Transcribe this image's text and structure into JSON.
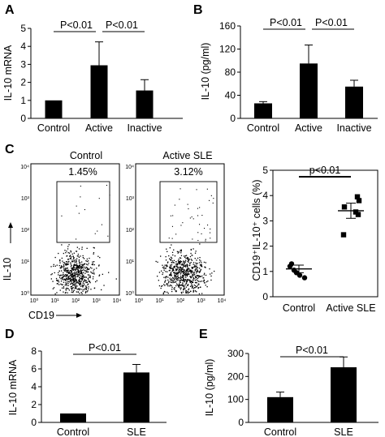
{
  "figure": {
    "panel_labels": [
      "A",
      "B",
      "C",
      "D",
      "E"
    ],
    "facs": {
      "panels": [
        {
          "title": "Control",
          "gate_percent": "1.45%"
        },
        {
          "title": "Active SLE",
          "gate_percent": "3.12%"
        }
      ],
      "y_axis_label": "IL-10",
      "x_axis_label": "CD19",
      "y_ticks": [
        "10⁰",
        "10¹",
        "10²",
        "10³",
        "10⁴"
      ],
      "x_ticks": [
        "10⁰",
        "10¹",
        "10²",
        "10³",
        "10⁴"
      ]
    }
  },
  "chart_data": [
    {
      "panel": "A",
      "type": "bar",
      "categories": [
        "Control",
        "Active",
        "Inactive"
      ],
      "values": [
        1.0,
        2.95,
        1.55
      ],
      "errors": [
        0,
        1.3,
        0.6
      ],
      "ylabel": "IL-10 mRNA",
      "ylim": [
        0,
        5
      ],
      "yticks": [
        0,
        1,
        2,
        3,
        4,
        5
      ],
      "significance": [
        {
          "from": 0,
          "to": 1,
          "label": "P<0.01"
        },
        {
          "from": 1,
          "to": 2,
          "label": "P<0.01"
        }
      ],
      "bar_color": "#000000"
    },
    {
      "panel": "B",
      "type": "bar",
      "categories": [
        "Control",
        "Active",
        "Inactive"
      ],
      "values": [
        26,
        95,
        55
      ],
      "errors": [
        3,
        32,
        11
      ],
      "ylabel": "IL-10 (pg/ml)",
      "ylim": [
        0,
        160
      ],
      "yticks": [
        0,
        40,
        80,
        120,
        160
      ],
      "significance": [
        {
          "from": 0,
          "to": 1,
          "label": "P<0.01"
        },
        {
          "from": 1,
          "to": 2,
          "label": "P<0.01"
        }
      ],
      "bar_color": "#000000"
    },
    {
      "panel": "C",
      "type": "scatter",
      "categories": [
        "Control",
        "Active SLE"
      ],
      "series": [
        {
          "values": [
            0.95,
            1.3,
            0.75,
            1.05,
            1.2,
            0.85
          ]
        },
        {
          "values": [
            3.95,
            3.8,
            3.55,
            3.35,
            3.25,
            2.45
          ]
        }
      ],
      "means": [
        1.1,
        3.4
      ],
      "sem": [
        0.15,
        0.3
      ],
      "ylabel": "CD19⁺IL-10⁺ cells (%)",
      "ylim": [
        0,
        5
      ],
      "yticks": [
        0,
        1,
        2,
        3,
        4,
        5
      ],
      "significance": [
        {
          "from": 0,
          "to": 1,
          "label": "p<0.01"
        }
      ]
    },
    {
      "panel": "D",
      "type": "bar",
      "categories": [
        "Control",
        "SLE"
      ],
      "values": [
        1.0,
        5.6
      ],
      "errors": [
        0,
        0.9
      ],
      "ylabel": "IL-10 mRNA",
      "ylim": [
        0,
        8
      ],
      "yticks": [
        0,
        2,
        4,
        6,
        8
      ],
      "significance": [
        {
          "from": 0,
          "to": 1,
          "label": "P<0.01"
        }
      ],
      "bar_color": "#000000"
    },
    {
      "panel": "E",
      "type": "bar",
      "categories": [
        "Control",
        "SLE"
      ],
      "values": [
        110,
        240
      ],
      "errors": [
        22,
        45
      ],
      "ylabel": "IL-10 (pg/ml)",
      "ylim": [
        0,
        300
      ],
      "yticks": [
        0,
        100,
        200,
        300
      ],
      "significance": [
        {
          "from": 0,
          "to": 1,
          "label": "P<0.01"
        }
      ],
      "bar_color": "#000000"
    }
  ]
}
